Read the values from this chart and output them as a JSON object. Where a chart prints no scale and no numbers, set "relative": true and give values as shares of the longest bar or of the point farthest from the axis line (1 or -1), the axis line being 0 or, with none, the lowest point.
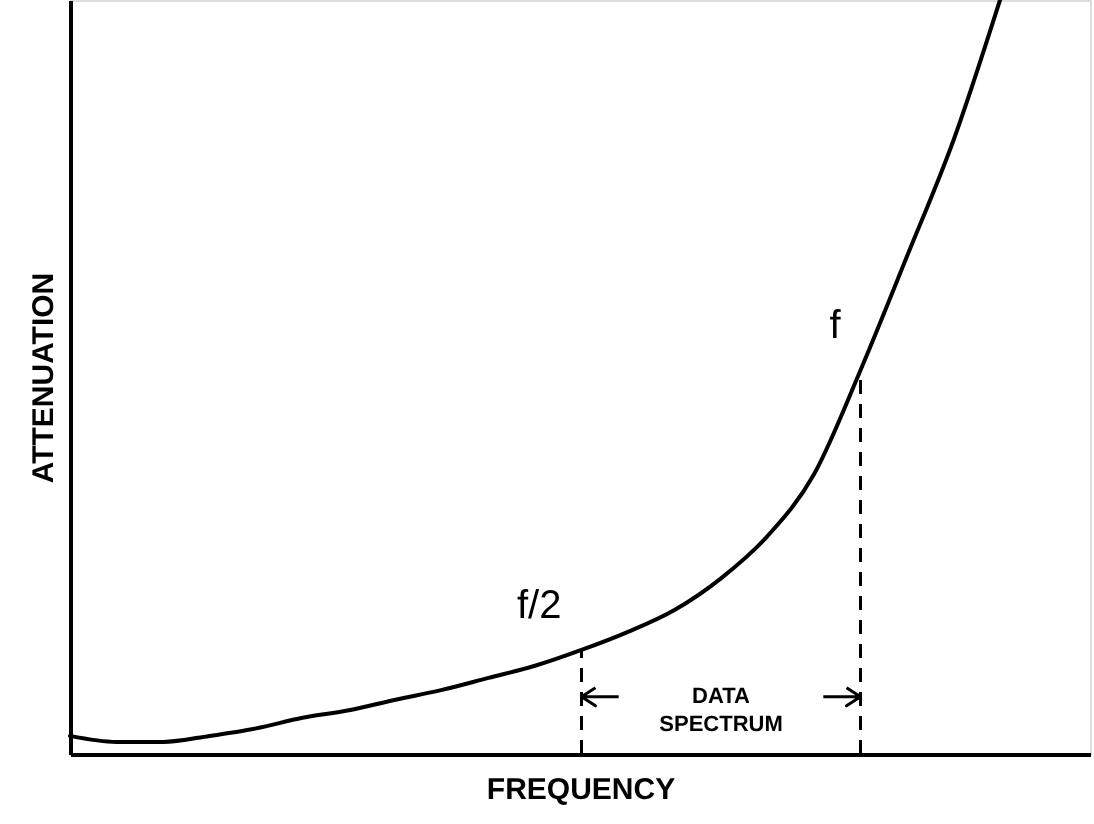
{
  "chart_data": {
    "type": "line",
    "relative": true,
    "color": "#000000",
    "line_style": "solid",
    "marker": "none",
    "xlabel": "FREQUENCY",
    "ylabel": "ATTENUATION",
    "categories": [
      null,
      null,
      null,
      null,
      null,
      null,
      null,
      null,
      null,
      null,
      null,
      null,
      null,
      null,
      null,
      null,
      null,
      null,
      null,
      null,
      null
    ],
    "values": [
      0.024,
      0.016,
      0.016,
      0.024,
      0.034,
      0.048,
      0.058,
      0.072,
      0.085,
      0.101,
      0.117,
      0.138,
      0.162,
      0.191,
      0.233,
      0.289,
      0.371,
      0.509,
      0.66,
      0.814,
      1
    ],
    "annotations": [
      "f/2",
      "f",
      "DATA SPECTRUM"
    ]
  }
}
